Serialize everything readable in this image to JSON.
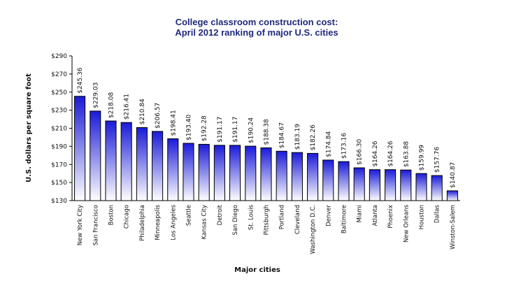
{
  "chart_data": {
    "type": "bar",
    "title": [
      "College classroom construction cost:",
      "April 2012 ranking of major U.S. cities"
    ],
    "xlabel": "Major cities",
    "ylabel": "U.S. dollars per square foot",
    "ylim": [
      130,
      290
    ],
    "yticks": [
      130,
      150,
      170,
      190,
      210,
      230,
      250,
      270,
      290
    ],
    "ytick_labels": [
      "$130",
      "$150",
      "$170",
      "$190",
      "$210",
      "$230",
      "$250",
      "$270",
      "$290"
    ],
    "categories": [
      "New York City",
      "San Francisco",
      "Boston",
      "Chicago",
      "Philadelphia",
      "Minneapolis",
      "Los Angeles",
      "Seattle",
      "Kansas City",
      "Detroit",
      "San Diego",
      "St. Louis",
      "Pittsburgh",
      "Portland",
      "Cleveland",
      "Washington D.C.",
      "Denver",
      "Baltimore",
      "Miami",
      "Atlanta",
      "Phoenix",
      "New Orleans",
      "Houston",
      "Dallas",
      "Winston-Salem"
    ],
    "values": [
      245.36,
      229.03,
      218.08,
      216.41,
      210.84,
      206.57,
      198.41,
      193.4,
      192.28,
      191.17,
      191.17,
      190.24,
      188.38,
      184.67,
      183.19,
      182.26,
      174.84,
      173.16,
      166.3,
      164.26,
      164.26,
      163.88,
      159.99,
      157.76,
      140.87
    ],
    "value_labels": [
      "$245.36",
      "$229.03",
      "$218.08",
      "$216.41",
      "$210.84",
      "$206.57",
      "$198.41",
      "$193.40",
      "$192.28",
      "$191.17",
      "$191.17",
      "$190.24",
      "$188.38",
      "$184.67",
      "$183.19",
      "$182.26",
      "$174.84",
      "$173.16",
      "$166.30",
      "$164.26",
      "$164.26",
      "$163.88",
      "$159.99",
      "$157.76",
      "$140.87"
    ],
    "grid": false,
    "colors": {
      "bar_top": "#1a1ad8",
      "bar_bottom": "#ffffff",
      "bar_stroke": "#000000",
      "title": "#1f2a7a"
    }
  }
}
